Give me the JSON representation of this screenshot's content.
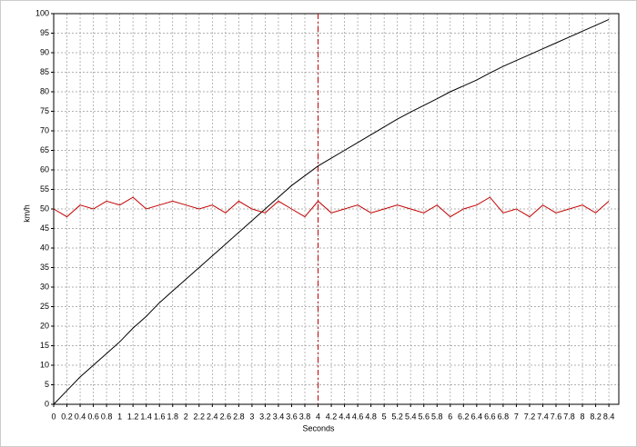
{
  "chart_data": {
    "type": "line",
    "x_label": "Seconds",
    "y_label": "km/h",
    "x": [
      0,
      0.2,
      0.4,
      0.6,
      0.8,
      1,
      1.2,
      1.4,
      1.6,
      1.8,
      2,
      2.2,
      2.4,
      2.6,
      2.8,
      3,
      3.2,
      3.4,
      3.6,
      3.8,
      4,
      4.2,
      4.4,
      4.6,
      4.8,
      5,
      5.2,
      5.4,
      5.6,
      5.8,
      6,
      6.2,
      6.4,
      6.6,
      6.8,
      7,
      7.2,
      7.4,
      7.6,
      7.8,
      8,
      8.2,
      8.4
    ],
    "series": [
      {
        "color": "#000000",
        "values": [
          0,
          3.5,
          7,
          10,
          13,
          16,
          19.5,
          22.5,
          26,
          29,
          32,
          35,
          38,
          41,
          44,
          47,
          50,
          53,
          56,
          58.5,
          61,
          63,
          65,
          67,
          69,
          71,
          73,
          74.8,
          76.5,
          78.2,
          80,
          81.5,
          83,
          84.8,
          86.5,
          88,
          89.5,
          91,
          92.5,
          94,
          95.5,
          97,
          98.5
        ]
      },
      {
        "color": "#c00000",
        "values": [
          50,
          48,
          51,
          50,
          52,
          51,
          53,
          50,
          51,
          52,
          51,
          50,
          51,
          49,
          52,
          50,
          49,
          52,
          50,
          48,
          52,
          49,
          50,
          51,
          49,
          50,
          51,
          50,
          49,
          51,
          48,
          50,
          51,
          53,
          49,
          50,
          48,
          51,
          49,
          50,
          51,
          49,
          52
        ]
      }
    ],
    "xlim": [
      0,
      8.55
    ],
    "ylim": [
      0,
      100
    ],
    "xticks": [
      0,
      0.2,
      0.4,
      0.6,
      0.8,
      1,
      1.2,
      1.4,
      1.6,
      1.8,
      2,
      2.2,
      2.4,
      2.6,
      2.8,
      3,
      3.2,
      3.4,
      3.6,
      3.8,
      4,
      4.2,
      4.4,
      4.6,
      4.8,
      5,
      5.2,
      5.4,
      5.6,
      5.8,
      6,
      6.2,
      6.4,
      6.6,
      6.8,
      7,
      7.2,
      7.4,
      7.6,
      7.8,
      8,
      8.2,
      8.4
    ],
    "yticks": [
      0,
      5,
      10,
      15,
      20,
      25,
      30,
      35,
      40,
      45,
      50,
      55,
      60,
      65,
      70,
      75,
      80,
      85,
      90,
      95,
      100
    ],
    "grid": true,
    "cursor_x": 4,
    "cursor_color": "#c00000"
  }
}
